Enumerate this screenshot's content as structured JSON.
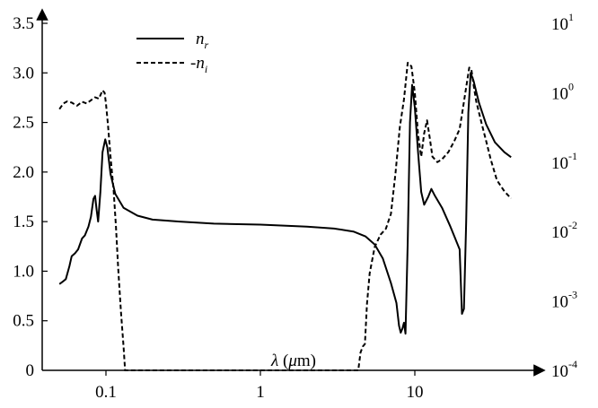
{
  "chart_data": {
    "type": "line",
    "x_scale": "log",
    "xlim": [
      0.05,
      45
    ],
    "x_ticks": [
      {
        "value": 0.1,
        "label": "0.1"
      },
      {
        "value": 1,
        "label": "1"
      },
      {
        "value": 10,
        "label": "10"
      }
    ],
    "xlabel": {
      "symbol": "λ",
      "unit": " (μm)",
      "unit_open": " (",
      "unit_mu": "μ",
      "unit_rest": "m)"
    },
    "left_axis": {
      "ylim": [
        0,
        3.5
      ],
      "ticks": [
        {
          "value": 0,
          "label": "0"
        },
        {
          "value": 0.5,
          "label": "0.5"
        },
        {
          "value": 1.0,
          "label": "1.0"
        },
        {
          "value": 1.5,
          "label": "1.5"
        },
        {
          "value": 2.0,
          "label": "2.0"
        },
        {
          "value": 2.5,
          "label": "2.5"
        },
        {
          "value": 3.0,
          "label": "3.0"
        },
        {
          "value": 3.5,
          "label": "3.5"
        }
      ]
    },
    "right_axis": {
      "scale": "log",
      "ylim": [
        0.0001,
        10
      ],
      "ticks": [
        {
          "value": 10,
          "base": "10",
          "exp": "1"
        },
        {
          "value": 1,
          "base": "10",
          "exp": "0"
        },
        {
          "value": 0.1,
          "base": "10",
          "exp": "-1"
        },
        {
          "value": 0.01,
          "base": "10",
          "exp": "-2"
        },
        {
          "value": 0.001,
          "base": "10",
          "exp": "-3"
        },
        {
          "value": 0.0001,
          "base": "10",
          "exp": "-4"
        }
      ]
    },
    "legend": {
      "position": "top-left",
      "entries": [
        {
          "series": "nr",
          "text": "n",
          "sub": "r"
        },
        {
          "series": "ni",
          "text": "-n",
          "sub": "i"
        }
      ]
    },
    "series": [
      {
        "id": "nr",
        "axis": "left",
        "style": "solid",
        "points": [
          [
            0.05,
            0.87
          ],
          [
            0.052,
            0.89
          ],
          [
            0.055,
            0.92
          ],
          [
            0.058,
            1.05
          ],
          [
            0.06,
            1.15
          ],
          [
            0.063,
            1.18
          ],
          [
            0.066,
            1.22
          ],
          [
            0.07,
            1.33
          ],
          [
            0.073,
            1.36
          ],
          [
            0.077,
            1.45
          ],
          [
            0.08,
            1.55
          ],
          [
            0.083,
            1.73
          ],
          [
            0.085,
            1.76
          ],
          [
            0.087,
            1.62
          ],
          [
            0.089,
            1.5
          ],
          [
            0.092,
            1.8
          ],
          [
            0.095,
            2.2
          ],
          [
            0.099,
            2.33
          ],
          [
            0.102,
            2.25
          ],
          [
            0.107,
            1.98
          ],
          [
            0.115,
            1.78
          ],
          [
            0.13,
            1.64
          ],
          [
            0.16,
            1.56
          ],
          [
            0.2,
            1.52
          ],
          [
            0.3,
            1.5
          ],
          [
            0.5,
            1.48
          ],
          [
            1,
            1.47
          ],
          [
            2,
            1.45
          ],
          [
            3,
            1.43
          ],
          [
            4,
            1.4
          ],
          [
            4.8,
            1.35
          ],
          [
            5.5,
            1.27
          ],
          [
            6.2,
            1.13
          ],
          [
            7,
            0.88
          ],
          [
            7.6,
            0.68
          ],
          [
            7.9,
            0.45
          ],
          [
            8.1,
            0.38
          ],
          [
            8.3,
            0.42
          ],
          [
            8.5,
            0.48
          ],
          [
            8.7,
            0.37
          ],
          [
            9.0,
            1.3
          ],
          [
            9.3,
            2.5
          ],
          [
            9.6,
            2.88
          ],
          [
            10,
            2.65
          ],
          [
            10.5,
            2.2
          ],
          [
            11,
            1.8
          ],
          [
            11.5,
            1.67
          ],
          [
            12.2,
            1.75
          ],
          [
            12.8,
            1.83
          ],
          [
            13.5,
            1.76
          ],
          [
            15,
            1.64
          ],
          [
            17,
            1.45
          ],
          [
            19.5,
            1.22
          ],
          [
            20.2,
            0.57
          ],
          [
            20.8,
            0.62
          ],
          [
            21.5,
            1.5
          ],
          [
            22.2,
            2.6
          ],
          [
            23,
            3.0
          ],
          [
            24,
            2.92
          ],
          [
            26,
            2.7
          ],
          [
            29,
            2.48
          ],
          [
            33,
            2.3
          ],
          [
            38,
            2.2
          ],
          [
            42,
            2.15
          ]
        ]
      },
      {
        "id": "ni",
        "axis": "right",
        "style": "dashed",
        "points": [
          [
            0.05,
            0.58
          ],
          [
            0.053,
            0.7
          ],
          [
            0.056,
            0.75
          ],
          [
            0.06,
            0.72
          ],
          [
            0.065,
            0.65
          ],
          [
            0.07,
            0.74
          ],
          [
            0.075,
            0.7
          ],
          [
            0.08,
            0.78
          ],
          [
            0.085,
            0.86
          ],
          [
            0.09,
            0.82
          ],
          [
            0.095,
            1.08
          ],
          [
            0.098,
            1.0
          ],
          [
            0.1,
            0.7
          ],
          [
            0.103,
            0.35
          ],
          [
            0.107,
            0.12
          ],
          [
            0.112,
            0.04
          ],
          [
            0.116,
            0.012
          ],
          [
            0.12,
            0.003
          ],
          [
            0.125,
            0.0007
          ],
          [
            0.13,
            0.00022
          ],
          [
            0.133,
            0.0001
          ],
          [
            4.3,
            0.0001
          ],
          [
            4.45,
            0.00018
          ],
          [
            4.6,
            0.00022
          ],
          [
            4.75,
            0.00024
          ],
          [
            4.9,
            0.0009
          ],
          [
            5.1,
            0.0025
          ],
          [
            5.5,
            0.006
          ],
          [
            6.0,
            0.009
          ],
          [
            6.5,
            0.011
          ],
          [
            7.0,
            0.018
          ],
          [
            7.5,
            0.07
          ],
          [
            8.0,
            0.32
          ],
          [
            8.5,
            0.8
          ],
          [
            9.0,
            2.7
          ],
          [
            9.5,
            2.4
          ],
          [
            10,
            1.0
          ],
          [
            10.5,
            0.25
          ],
          [
            11,
            0.12
          ],
          [
            11.5,
            0.26
          ],
          [
            12,
            0.4
          ],
          [
            12.5,
            0.22
          ],
          [
            13,
            0.12
          ],
          [
            14,
            0.1
          ],
          [
            15,
            0.11
          ],
          [
            16.5,
            0.14
          ],
          [
            18,
            0.2
          ],
          [
            19.5,
            0.3
          ],
          [
            20.5,
            0.6
          ],
          [
            21.5,
            1.2
          ],
          [
            22.5,
            2.3
          ],
          [
            23.2,
            2.2
          ],
          [
            24,
            1.3
          ],
          [
            25,
            0.75
          ],
          [
            27,
            0.37
          ],
          [
            29,
            0.2
          ],
          [
            31,
            0.11
          ],
          [
            34,
            0.055
          ],
          [
            38,
            0.038
          ],
          [
            42,
            0.03
          ]
        ]
      }
    ]
  }
}
